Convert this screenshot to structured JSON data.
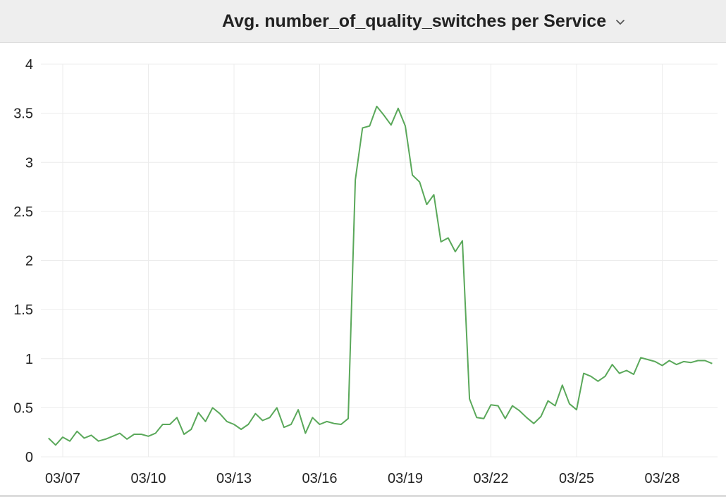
{
  "panel": {
    "title": "Avg. number_of_quality_switches per Service",
    "menu_icon": "chevron-down-icon"
  },
  "colors": {
    "line": "#5aa85a",
    "grid": "#ececec",
    "header_bg": "#eeeeee"
  },
  "chart_data": {
    "type": "line",
    "title": "Avg. number_of_quality_switches per Service",
    "xlabel": "",
    "ylabel": "",
    "ylim": [
      0,
      4
    ],
    "y_ticks": [
      "0",
      "0.5",
      "1",
      "1.5",
      "2",
      "2.5",
      "3",
      "3.5",
      "4"
    ],
    "x_ticks": [
      "03/07",
      "03/10",
      "03/13",
      "03/16",
      "03/19",
      "03/22",
      "03/25",
      "03/28"
    ],
    "grid": true,
    "series": [
      {
        "values": [
          [
            "03/06 12:00",
            0.19
          ],
          [
            "03/06 18:00",
            0.12
          ],
          [
            "03/07 00:00",
            0.2
          ],
          [
            "03/07 06:00",
            0.16
          ],
          [
            "03/07 12:00",
            0.26
          ],
          [
            "03/07 18:00",
            0.19
          ],
          [
            "03/08 00:00",
            0.22
          ],
          [
            "03/08 06:00",
            0.16
          ],
          [
            "03/08 12:00",
            0.18
          ],
          [
            "03/08 18:00",
            0.21
          ],
          [
            "03/09 00:00",
            0.24
          ],
          [
            "03/09 06:00",
            0.18
          ],
          [
            "03/09 12:00",
            0.23
          ],
          [
            "03/09 18:00",
            0.23
          ],
          [
            "03/10 00:00",
            0.21
          ],
          [
            "03/10 06:00",
            0.24
          ],
          [
            "03/10 12:00",
            0.33
          ],
          [
            "03/10 18:00",
            0.33
          ],
          [
            "03/11 00:00",
            0.4
          ],
          [
            "03/11 06:00",
            0.23
          ],
          [
            "03/11 12:00",
            0.28
          ],
          [
            "03/11 18:00",
            0.45
          ],
          [
            "03/12 00:00",
            0.36
          ],
          [
            "03/12 06:00",
            0.5
          ],
          [
            "03/12 12:00",
            0.44
          ],
          [
            "03/12 18:00",
            0.36
          ],
          [
            "03/13 00:00",
            0.33
          ],
          [
            "03/13 06:00",
            0.28
          ],
          [
            "03/13 12:00",
            0.33
          ],
          [
            "03/13 18:00",
            0.44
          ],
          [
            "03/14 00:00",
            0.37
          ],
          [
            "03/14 06:00",
            0.4
          ],
          [
            "03/14 12:00",
            0.5
          ],
          [
            "03/14 18:00",
            0.3
          ],
          [
            "03/15 00:00",
            0.33
          ],
          [
            "03/15 06:00",
            0.48
          ],
          [
            "03/15 12:00",
            0.24
          ],
          [
            "03/15 18:00",
            0.4
          ],
          [
            "03/16 00:00",
            0.33
          ],
          [
            "03/16 06:00",
            0.36
          ],
          [
            "03/16 12:00",
            0.34
          ],
          [
            "03/16 18:00",
            0.33
          ],
          [
            "03/17 00:00",
            0.39
          ],
          [
            "03/17 06:00",
            2.82
          ],
          [
            "03/17 12:00",
            3.35
          ],
          [
            "03/17 18:00",
            3.37
          ],
          [
            "03/18 00:00",
            3.57
          ],
          [
            "03/18 06:00",
            3.48
          ],
          [
            "03/18 12:00",
            3.38
          ],
          [
            "03/18 18:00",
            3.55
          ],
          [
            "03/19 00:00",
            3.37
          ],
          [
            "03/19 06:00",
            2.87
          ],
          [
            "03/19 12:00",
            2.8
          ],
          [
            "03/19 18:00",
            2.57
          ],
          [
            "03/20 00:00",
            2.67
          ],
          [
            "03/20 06:00",
            2.19
          ],
          [
            "03/20 12:00",
            2.23
          ],
          [
            "03/20 18:00",
            2.09
          ],
          [
            "03/21 00:00",
            2.2
          ],
          [
            "03/21 06:00",
            0.59
          ],
          [
            "03/21 12:00",
            0.4
          ],
          [
            "03/21 18:00",
            0.39
          ],
          [
            "03/22 00:00",
            0.53
          ],
          [
            "03/22 06:00",
            0.52
          ],
          [
            "03/22 12:00",
            0.39
          ],
          [
            "03/22 18:00",
            0.52
          ],
          [
            "03/23 00:00",
            0.47
          ],
          [
            "03/23 06:00",
            0.4
          ],
          [
            "03/23 12:00",
            0.34
          ],
          [
            "03/23 18:00",
            0.41
          ],
          [
            "03/24 00:00",
            0.57
          ],
          [
            "03/24 06:00",
            0.52
          ],
          [
            "03/24 12:00",
            0.73
          ],
          [
            "03/24 18:00",
            0.54
          ],
          [
            "03/25 00:00",
            0.48
          ],
          [
            "03/25 06:00",
            0.85
          ],
          [
            "03/25 12:00",
            0.82
          ],
          [
            "03/25 18:00",
            0.77
          ],
          [
            "03/26 00:00",
            0.82
          ],
          [
            "03/26 06:00",
            0.94
          ],
          [
            "03/26 12:00",
            0.85
          ],
          [
            "03/26 18:00",
            0.88
          ],
          [
            "03/27 00:00",
            0.84
          ],
          [
            "03/27 06:00",
            1.01
          ],
          [
            "03/27 12:00",
            0.99
          ],
          [
            "03/27 18:00",
            0.97
          ],
          [
            "03/28 00:00",
            0.93
          ],
          [
            "03/28 06:00",
            0.98
          ],
          [
            "03/28 12:00",
            0.94
          ],
          [
            "03/28 18:00",
            0.97
          ],
          [
            "03/29 00:00",
            0.96
          ],
          [
            "03/29 06:00",
            0.98
          ],
          [
            "03/29 12:00",
            0.98
          ],
          [
            "03/29 18:00",
            0.95
          ]
        ]
      }
    ]
  }
}
